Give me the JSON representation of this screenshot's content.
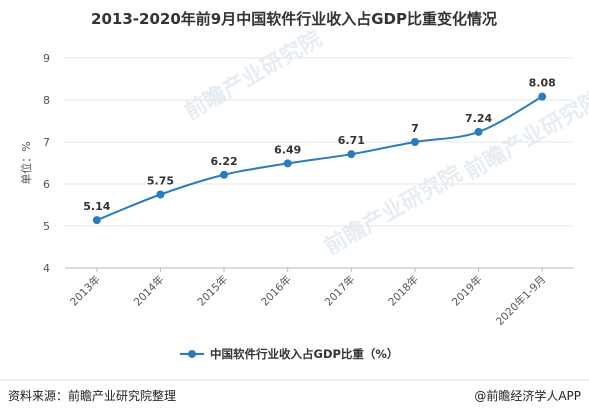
{
  "chart_data": {
    "type": "line",
    "title": "2013-2020年前9月中国软件行业收入占GDP比重变化情况",
    "ylabel": "单位：%",
    "categories": [
      "2013年",
      "2014年",
      "2015年",
      "2016年",
      "2017年",
      "2018年",
      "2019年",
      "2020年1-9月"
    ],
    "series": [
      {
        "name": "中国软件行业收入占GDP比重（%）",
        "values": [
          5.14,
          5.75,
          6.22,
          6.49,
          6.71,
          7,
          7.24,
          8.08
        ]
      }
    ],
    "data_labels": [
      "5.14",
      "5.75",
      "6.22",
      "6.49",
      "6.71",
      "7",
      "7.24",
      "8.08"
    ],
    "yticks": [
      "4",
      "5",
      "6",
      "7",
      "8",
      "9"
    ],
    "ylim": [
      4,
      9
    ],
    "grid": true,
    "legend_position": "bottom",
    "colors": {
      "series": "#2b7bbf",
      "grid": "#e6e6e6"
    }
  },
  "footer": {
    "source": "资料来源：前瞻产业研究院整理",
    "brand": "@前瞻经济学人APP"
  }
}
